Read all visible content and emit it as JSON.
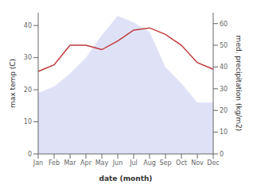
{
  "chart_data": {
    "type": "line",
    "xlabel": "date (month)",
    "ylabel": "max temp (C)",
    "y2label": "med. precipitation (kg/m2)",
    "categories": [
      "Jan",
      "Feb",
      "Mar",
      "Apr",
      "May",
      "Jun",
      "Jul",
      "Aug",
      "Sep",
      "Oct",
      "Nov",
      "Dec"
    ],
    "series": [
      {
        "type": "area",
        "color": "#c5caf0",
        "values": [
          19,
          21,
          25,
          30,
          37,
          43,
          41,
          38,
          27,
          22,
          16,
          16
        ]
      },
      {
        "type": "line",
        "color": "#c0393b",
        "axis": "y2",
        "values": [
          38,
          41,
          50,
          50,
          48,
          52,
          57,
          58,
          55,
          50,
          42,
          39
        ]
      }
    ],
    "ylim": [
      0,
      44
    ],
    "yticks": [
      0,
      10,
      20,
      30,
      40
    ],
    "y2lim": [
      0,
      65
    ],
    "y2ticks": [
      0,
      10,
      20,
      30,
      40,
      50,
      60
    ],
    "grid": false
  }
}
